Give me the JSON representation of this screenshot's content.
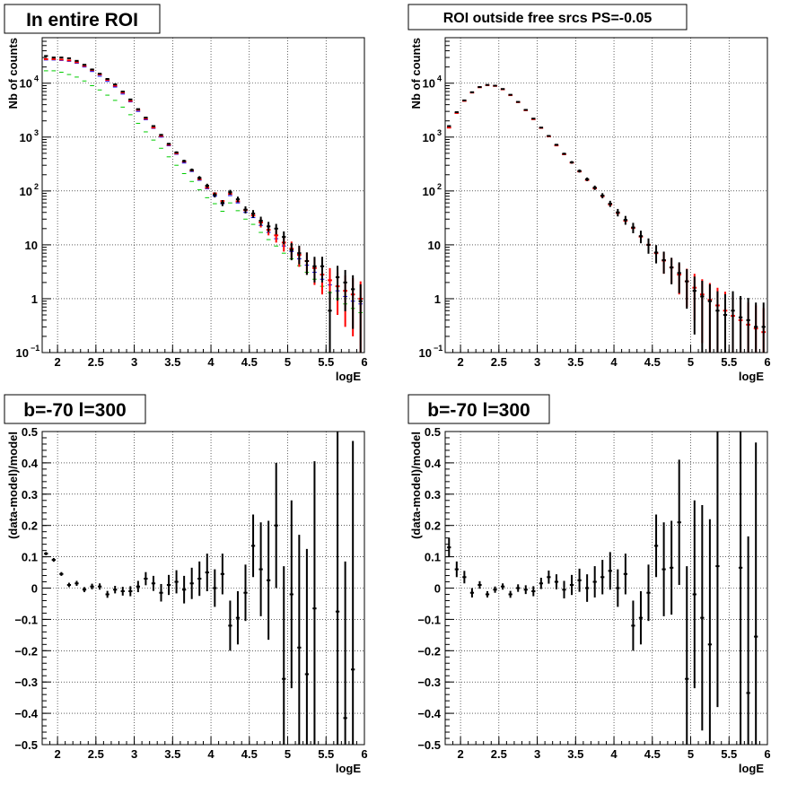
{
  "chart_data": [
    {
      "type": "scatter",
      "title": "In entire ROI",
      "xlabel": "logE",
      "ylabel": "Nb of counts",
      "yscale": "log",
      "xlim": [
        1.8,
        6.0
      ],
      "ylim": [
        0.1,
        70000
      ],
      "grid": true,
      "xticks": [
        {
          "v": 2,
          "t": "2"
        },
        {
          "v": 2.5,
          "t": "2.5"
        },
        {
          "v": 3,
          "t": "3"
        },
        {
          "v": 3.5,
          "t": "3.5"
        },
        {
          "v": 4,
          "t": "4"
        },
        {
          "v": 4.5,
          "t": "4.5"
        },
        {
          "v": 5,
          "t": "5"
        },
        {
          "v": 5.5,
          "t": "5.5"
        },
        {
          "v": 6,
          "t": "6"
        }
      ],
      "yticks": [
        {
          "v": 0.1,
          "t": "10",
          "sup": "−1"
        },
        {
          "v": 1,
          "t": "1"
        },
        {
          "v": 10,
          "t": "10"
        },
        {
          "v": 100,
          "t": "10",
          "sup": "2"
        },
        {
          "v": 1000,
          "t": "10",
          "sup": "3"
        },
        {
          "v": 10000,
          "t": "10",
          "sup": "4"
        }
      ],
      "binwidth": 0.1,
      "x": [
        1.85,
        1.95,
        2.05,
        2.15,
        2.25,
        2.35,
        2.45,
        2.55,
        2.65,
        2.75,
        2.85,
        2.95,
        3.05,
        3.15,
        3.25,
        3.35,
        3.45,
        3.55,
        3.65,
        3.75,
        3.85,
        3.95,
        4.05,
        4.15,
        4.25,
        4.35,
        4.45,
        4.55,
        4.65,
        4.75,
        4.85,
        4.95,
        5.05,
        5.15,
        5.25,
        5.35,
        5.45,
        5.55,
        5.65,
        5.75,
        5.85,
        5.95
      ],
      "series": [
        {
          "color": "#000000",
          "style": "data",
          "values": [
            32000,
            30000,
            30000,
            29000,
            26000,
            22000,
            18000,
            15000,
            12000,
            9500,
            7000,
            5000,
            3300,
            2300,
            1600,
            1100,
            750,
            520,
            360,
            245,
            175,
            125,
            85,
            60,
            95,
            70,
            45,
            38,
            28,
            22,
            20,
            14,
            8,
            7,
            5,
            4,
            4,
            0.6,
            2.5,
            2,
            1.5,
            0.9
          ]
        },
        {
          "color": "#ff0000",
          "style": "model",
          "values": [
            28000,
            28000,
            27500,
            26500,
            24500,
            21000,
            17500,
            14500,
            11500,
            9000,
            6700,
            4700,
            3200,
            2200,
            1500,
            1050,
            720,
            500,
            350,
            240,
            165,
            115,
            90,
            65,
            88,
            64,
            44,
            35,
            26,
            19,
            15,
            11,
            8.5,
            6.5,
            5,
            3.7,
            2.8,
            2.2,
            1.7,
            1.4,
            1.2,
            1.0
          ],
          "err_lo": [
            0,
            0,
            0,
            0,
            0,
            0,
            0,
            0,
            0,
            0,
            0,
            0,
            0,
            0,
            0,
            0,
            0,
            0,
            0,
            0,
            0,
            0,
            0,
            0,
            0,
            0,
            0,
            0,
            5,
            4,
            4,
            3.5,
            3,
            2.6,
            2.2,
            1.9,
            1.6,
            1.4,
            1.2,
            1.1,
            1.0,
            0.92
          ],
          "err_hi": [
            0,
            0,
            0,
            0,
            0,
            0,
            0,
            0,
            0,
            0,
            0,
            0,
            0,
            0,
            0,
            0,
            0,
            0,
            0,
            0,
            0,
            0,
            0,
            0,
            0,
            0,
            0,
            0,
            5,
            4,
            4,
            3.5,
            3,
            2.6,
            2.2,
            1.9,
            1.6,
            1.5,
            1.4,
            1.3,
            1.2,
            1.1
          ]
        },
        {
          "color": "#0000ff",
          "style": "bar",
          "values": [
            27000,
            27000,
            26500,
            25500,
            23500,
            20000,
            16500,
            13500,
            10800,
            8500,
            6300,
            4500,
            3000,
            2100,
            1450,
            1000,
            690,
            480,
            330,
            230,
            158,
            110,
            80,
            58,
            82,
            60,
            40,
            32,
            23,
            17,
            13,
            9.5,
            7.5,
            5.5,
            4.2,
            3.1,
            2.3,
            1.8,
            1.4,
            1.1,
            0.9,
            0.8
          ]
        },
        {
          "color": "#00cc00",
          "style": "bar",
          "values": [
            17000,
            17000,
            16000,
            14500,
            13000,
            11000,
            9000,
            7500,
            6000,
            4800,
            3600,
            2600,
            1800,
            1250,
            880,
            620,
            430,
            300,
            210,
            150,
            105,
            75,
            58,
            42,
            60,
            43,
            30,
            24,
            17,
            12.5,
            9.5,
            7,
            5.5,
            4.1,
            3.1,
            2.3,
            1.7,
            1.3,
            1.0,
            0.8,
            0.66,
            0.55
          ]
        }
      ]
    },
    {
      "type": "scatter",
      "title": "ROI outside free srcs PS=-0.05",
      "xlabel": "logE",
      "ylabel": "Nb of counts",
      "yscale": "log",
      "xlim": [
        1.8,
        6.0
      ],
      "ylim": [
        0.1,
        70000
      ],
      "grid": true,
      "xticks": [
        {
          "v": 2,
          "t": "2"
        },
        {
          "v": 2.5,
          "t": "2.5"
        },
        {
          "v": 3,
          "t": "3"
        },
        {
          "v": 3.5,
          "t": "3.5"
        },
        {
          "v": 4,
          "t": "4"
        },
        {
          "v": 4.5,
          "t": "4.5"
        },
        {
          "v": 5,
          "t": "5"
        },
        {
          "v": 5.5,
          "t": "5.5"
        },
        {
          "v": 6,
          "t": "6"
        }
      ],
      "yticks": [
        {
          "v": 0.1,
          "t": "10",
          "sup": "−1"
        },
        {
          "v": 1,
          "t": "1"
        },
        {
          "v": 10,
          "t": "10"
        },
        {
          "v": 100,
          "t": "10",
          "sup": "2"
        },
        {
          "v": 1000,
          "t": "10",
          "sup": "3"
        },
        {
          "v": 10000,
          "t": "10",
          "sup": "4"
        }
      ],
      "binwidth": 0.1,
      "x": [
        1.85,
        1.95,
        2.05,
        2.15,
        2.25,
        2.35,
        2.45,
        2.55,
        2.65,
        2.75,
        2.85,
        2.95,
        3.05,
        3.15,
        3.25,
        3.35,
        3.45,
        3.55,
        3.65,
        3.75,
        3.85,
        3.95,
        4.05,
        4.15,
        4.25,
        4.35,
        4.45,
        4.55,
        4.65,
        4.75,
        4.85,
        4.95,
        5.05,
        5.15,
        5.25,
        5.35,
        5.45,
        5.55,
        5.65,
        5.75,
        5.85,
        5.95
      ],
      "series": [
        {
          "color": "#000000",
          "style": "data",
          "values": [
            1600,
            2900,
            4800,
            6800,
            8500,
            9300,
            9000,
            7800,
            6100,
            4500,
            3200,
            2200,
            1500,
            1050,
            720,
            490,
            340,
            235,
            165,
            115,
            82,
            58,
            40,
            29,
            21,
            14.5,
            10,
            7.2,
            5.2,
            3.8,
            3.0,
            2.1,
            1.4,
            1.1,
            0.9,
            0.6,
            0.5,
            0.6,
            0.45,
            0.4,
            0.3,
            0.3
          ]
        },
        {
          "color": "#ff0000",
          "style": "model",
          "values": [
            1500,
            2800,
            4700,
            6700,
            8400,
            9200,
            8900,
            7700,
            6000,
            4450,
            3150,
            2150,
            1480,
            1030,
            700,
            480,
            335,
            230,
            160,
            112,
            80,
            56,
            39,
            28,
            20.5,
            14.2,
            10,
            7.0,
            5.1,
            3.8,
            2.8,
            2.1,
            1.6,
            1.2,
            0.95,
            0.75,
            0.6,
            0.48,
            0.4,
            0.33,
            0.28,
            0.24
          ],
          "err_lo": [
            0,
            0,
            0,
            0,
            0,
            0,
            0,
            0,
            0,
            0,
            0,
            0,
            0,
            0,
            0,
            0,
            0,
            0,
            0,
            0,
            0,
            0,
            0,
            0,
            0,
            0,
            0,
            0,
            2.2,
            1.9,
            1.6,
            1.4,
            1.2,
            1.05,
            0.9,
            0.72,
            0.58,
            0.47,
            0.39,
            0.32,
            0.27,
            0.23
          ],
          "err_hi": [
            0,
            0,
            0,
            0,
            0,
            0,
            0,
            0,
            0,
            0,
            0,
            0,
            0,
            0,
            0,
            0,
            0,
            0,
            0,
            0,
            0,
            0,
            0,
            0,
            0,
            0,
            0,
            0,
            2.2,
            1.9,
            1.7,
            1.5,
            1.3,
            1.1,
            1.0,
            0.85,
            0.75,
            0.65,
            0.58,
            0.52,
            0.47,
            0.43
          ]
        }
      ]
    },
    {
      "type": "scatter",
      "title": "b=-70 l=300",
      "xlabel": "logE",
      "ylabel": "(data-model)/model",
      "yscale": "linear",
      "xlim": [
        1.8,
        6.0
      ],
      "ylim": [
        -0.5,
        0.5
      ],
      "grid": true,
      "xticks": [
        {
          "v": 2,
          "t": "2"
        },
        {
          "v": 2.5,
          "t": "2.5"
        },
        {
          "v": 3,
          "t": "3"
        },
        {
          "v": 3.5,
          "t": "3.5"
        },
        {
          "v": 4,
          "t": "4"
        },
        {
          "v": 4.5,
          "t": "4.5"
        },
        {
          "v": 5,
          "t": "5"
        },
        {
          "v": 5.5,
          "t": "5.5"
        },
        {
          "v": 6,
          "t": "6"
        }
      ],
      "yticks": [
        {
          "v": -0.5,
          "t": "−0.5"
        },
        {
          "v": -0.4,
          "t": "−0.4"
        },
        {
          "v": -0.3,
          "t": "−0.3"
        },
        {
          "v": -0.2,
          "t": "−0.2"
        },
        {
          "v": -0.1,
          "t": "−0.1"
        },
        {
          "v": 0,
          "t": "0"
        },
        {
          "v": 0.1,
          "t": "0.1"
        },
        {
          "v": 0.2,
          "t": "0.2"
        },
        {
          "v": 0.3,
          "t": "0.3"
        },
        {
          "v": 0.4,
          "t": "0.4"
        },
        {
          "v": 0.5,
          "t": "0.5"
        }
      ],
      "binwidth": 0.1,
      "x": [
        1.85,
        1.95,
        2.05,
        2.15,
        2.25,
        2.35,
        2.45,
        2.55,
        2.65,
        2.75,
        2.85,
        2.95,
        3.05,
        3.15,
        3.25,
        3.35,
        3.45,
        3.55,
        3.65,
        3.75,
        3.85,
        3.95,
        4.05,
        4.15,
        4.25,
        4.35,
        4.45,
        4.55,
        4.65,
        4.75,
        4.85,
        4.95,
        5.05,
        5.15,
        5.25,
        5.35,
        5.65,
        5.75,
        5.85
      ],
      "series": [
        {
          "color": "#000000",
          "style": "data",
          "values": [
            0.11,
            0.09,
            0.045,
            0.01,
            0.015,
            -0.005,
            0.005,
            0.005,
            -0.02,
            -0.005,
            -0.01,
            -0.01,
            0.005,
            0.03,
            0.015,
            -0.015,
            0.01,
            0.02,
            -0.005,
            0.015,
            0.03,
            0.05,
            0.0,
            0.045,
            -0.12,
            -0.095,
            -0.015,
            0.135,
            0.06,
            0.025,
            0.2,
            -0.29,
            -0.02,
            -0.19,
            -0.275,
            -0.065,
            -0.075,
            -0.415,
            -0.26
          ],
          "err": [
            0.005,
            0.006,
            0.006,
            0.007,
            0.008,
            0.008,
            0.009,
            0.01,
            0.011,
            0.012,
            0.014,
            0.016,
            0.018,
            0.021,
            0.024,
            0.028,
            0.032,
            0.037,
            0.044,
            0.05,
            0.055,
            0.06,
            0.06,
            0.065,
            0.08,
            0.085,
            0.09,
            0.1,
            0.15,
            0.19,
            0.2,
            0.36,
            0.3,
            0.36,
            0.4,
            0.47,
            0.58,
            0.5,
            0.73
          ]
        }
      ]
    },
    {
      "type": "scatter",
      "title": "b=-70 l=300",
      "xlabel": "logE",
      "ylabel": "(data-model)/model",
      "yscale": "linear",
      "xlim": [
        1.8,
        6.0
      ],
      "ylim": [
        -0.5,
        0.5
      ],
      "grid": true,
      "xticks": [
        {
          "v": 2,
          "t": "2"
        },
        {
          "v": 2.5,
          "t": "2.5"
        },
        {
          "v": 3,
          "t": "3"
        },
        {
          "v": 3.5,
          "t": "3.5"
        },
        {
          "v": 4,
          "t": "4"
        },
        {
          "v": 4.5,
          "t": "4.5"
        },
        {
          "v": 5,
          "t": "5"
        },
        {
          "v": 5.5,
          "t": "5.5"
        },
        {
          "v": 6,
          "t": "6"
        }
      ],
      "yticks": [
        {
          "v": -0.5,
          "t": "−0.5"
        },
        {
          "v": -0.4,
          "t": "−0.4"
        },
        {
          "v": -0.3,
          "t": "−0.3"
        },
        {
          "v": -0.2,
          "t": "−0.2"
        },
        {
          "v": -0.1,
          "t": "−0.1"
        },
        {
          "v": 0,
          "t": "0"
        },
        {
          "v": 0.1,
          "t": "0.1"
        },
        {
          "v": 0.2,
          "t": "0.2"
        },
        {
          "v": 0.3,
          "t": "0.3"
        },
        {
          "v": 0.4,
          "t": "0.4"
        },
        {
          "v": 0.5,
          "t": "0.5"
        }
      ],
      "binwidth": 0.1,
      "x": [
        1.85,
        1.95,
        2.05,
        2.15,
        2.25,
        2.35,
        2.45,
        2.55,
        2.65,
        2.75,
        2.85,
        2.95,
        3.05,
        3.15,
        3.25,
        3.35,
        3.45,
        3.55,
        3.65,
        3.75,
        3.85,
        3.95,
        4.05,
        4.15,
        4.25,
        4.35,
        4.45,
        4.55,
        4.65,
        4.75,
        4.85,
        4.95,
        5.05,
        5.15,
        5.25,
        5.35,
        5.65,
        5.75,
        5.85
      ],
      "series": [
        {
          "color": "#000000",
          "style": "data",
          "values": [
            0.13,
            0.06,
            0.035,
            -0.015,
            0.01,
            -0.02,
            -0.005,
            0.005,
            -0.02,
            0.0,
            -0.005,
            -0.01,
            0.015,
            0.035,
            0.02,
            -0.005,
            0.01,
            0.025,
            0.0,
            0.02,
            0.035,
            0.055,
            0.0,
            0.045,
            -0.12,
            -0.095,
            -0.015,
            0.135,
            0.06,
            0.065,
            0.21,
            -0.29,
            -0.02,
            -0.095,
            -0.18,
            0.07,
            0.065,
            -0.335,
            -0.155
          ],
          "err": [
            0.03,
            0.025,
            0.02,
            0.015,
            0.012,
            0.01,
            0.01,
            0.01,
            0.011,
            0.012,
            0.014,
            0.016,
            0.018,
            0.021,
            0.024,
            0.028,
            0.032,
            0.037,
            0.044,
            0.05,
            0.055,
            0.06,
            0.06,
            0.065,
            0.08,
            0.085,
            0.09,
            0.1,
            0.15,
            0.15,
            0.2,
            0.36,
            0.3,
            0.36,
            0.4,
            0.45,
            0.58,
            0.5,
            0.62
          ]
        }
      ]
    }
  ]
}
